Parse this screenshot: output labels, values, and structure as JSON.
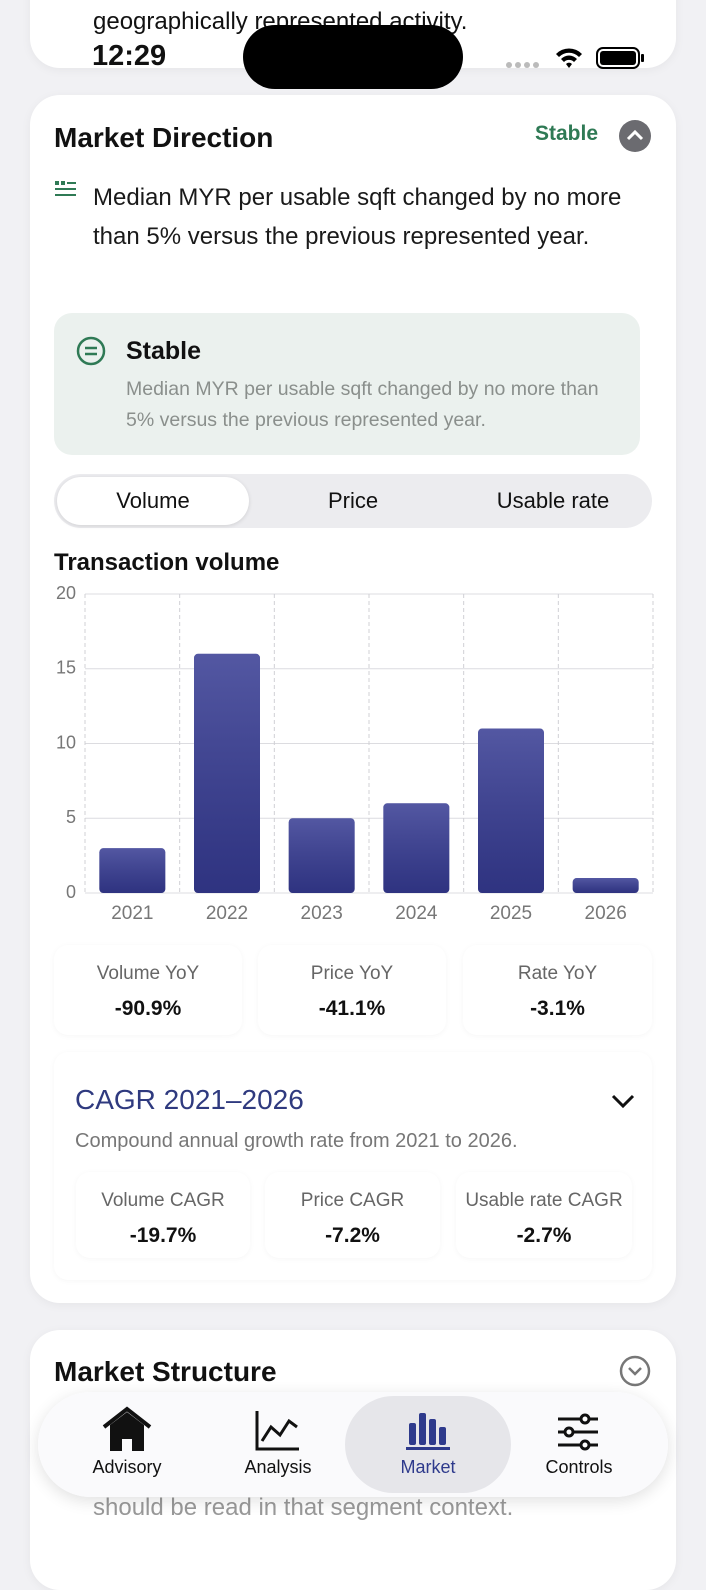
{
  "previous_card": {
    "text": "geographically represented activity."
  },
  "status_bar": {
    "time": "12:29"
  },
  "market_direction": {
    "title": "Market Direction",
    "status": "Stable",
    "summary": "Median MYR per usable sqft changed by no more than 5% versus the previous represented year.",
    "callout": {
      "title": "Stable",
      "text": "Median MYR per usable sqft changed by no more than 5% versus the previous represented year."
    },
    "tabs": [
      "Volume",
      "Price",
      "Usable rate"
    ],
    "selected_tab": 0,
    "stats": [
      {
        "label": "Volume YoY",
        "value": "-90.9%"
      },
      {
        "label": "Price YoY",
        "value": "-41.1%"
      },
      {
        "label": "Rate YoY",
        "value": "-3.1%"
      }
    ],
    "cagr": {
      "title": "CAGR 2021–2026",
      "subtitle": "Compound annual growth rate from 2021 to 2026.",
      "stats": [
        {
          "label": "Volume CAGR",
          "value": "-19.7%"
        },
        {
          "label": "Price CAGR",
          "value": "-7.2%"
        },
        {
          "label": "Usable rate CAGR",
          "value": "-2.7%"
        }
      ]
    }
  },
  "chart_data": {
    "type": "bar",
    "title": "Transaction volume",
    "categories": [
      "2021",
      "2022",
      "2023",
      "2024",
      "2025",
      "2026"
    ],
    "values": [
      3,
      16,
      5,
      6,
      11,
      1
    ],
    "color": "#353a92",
    "ylim": [
      0,
      20
    ],
    "yticks": [
      0,
      5,
      10,
      15,
      20
    ],
    "grid": true
  },
  "market_structure": {
    "title": "Market Structure",
    "text": "should be read in that segment context."
  },
  "tab_bar": {
    "items": [
      "Advisory",
      "Analysis",
      "Market",
      "Controls"
    ],
    "selected": 2
  }
}
